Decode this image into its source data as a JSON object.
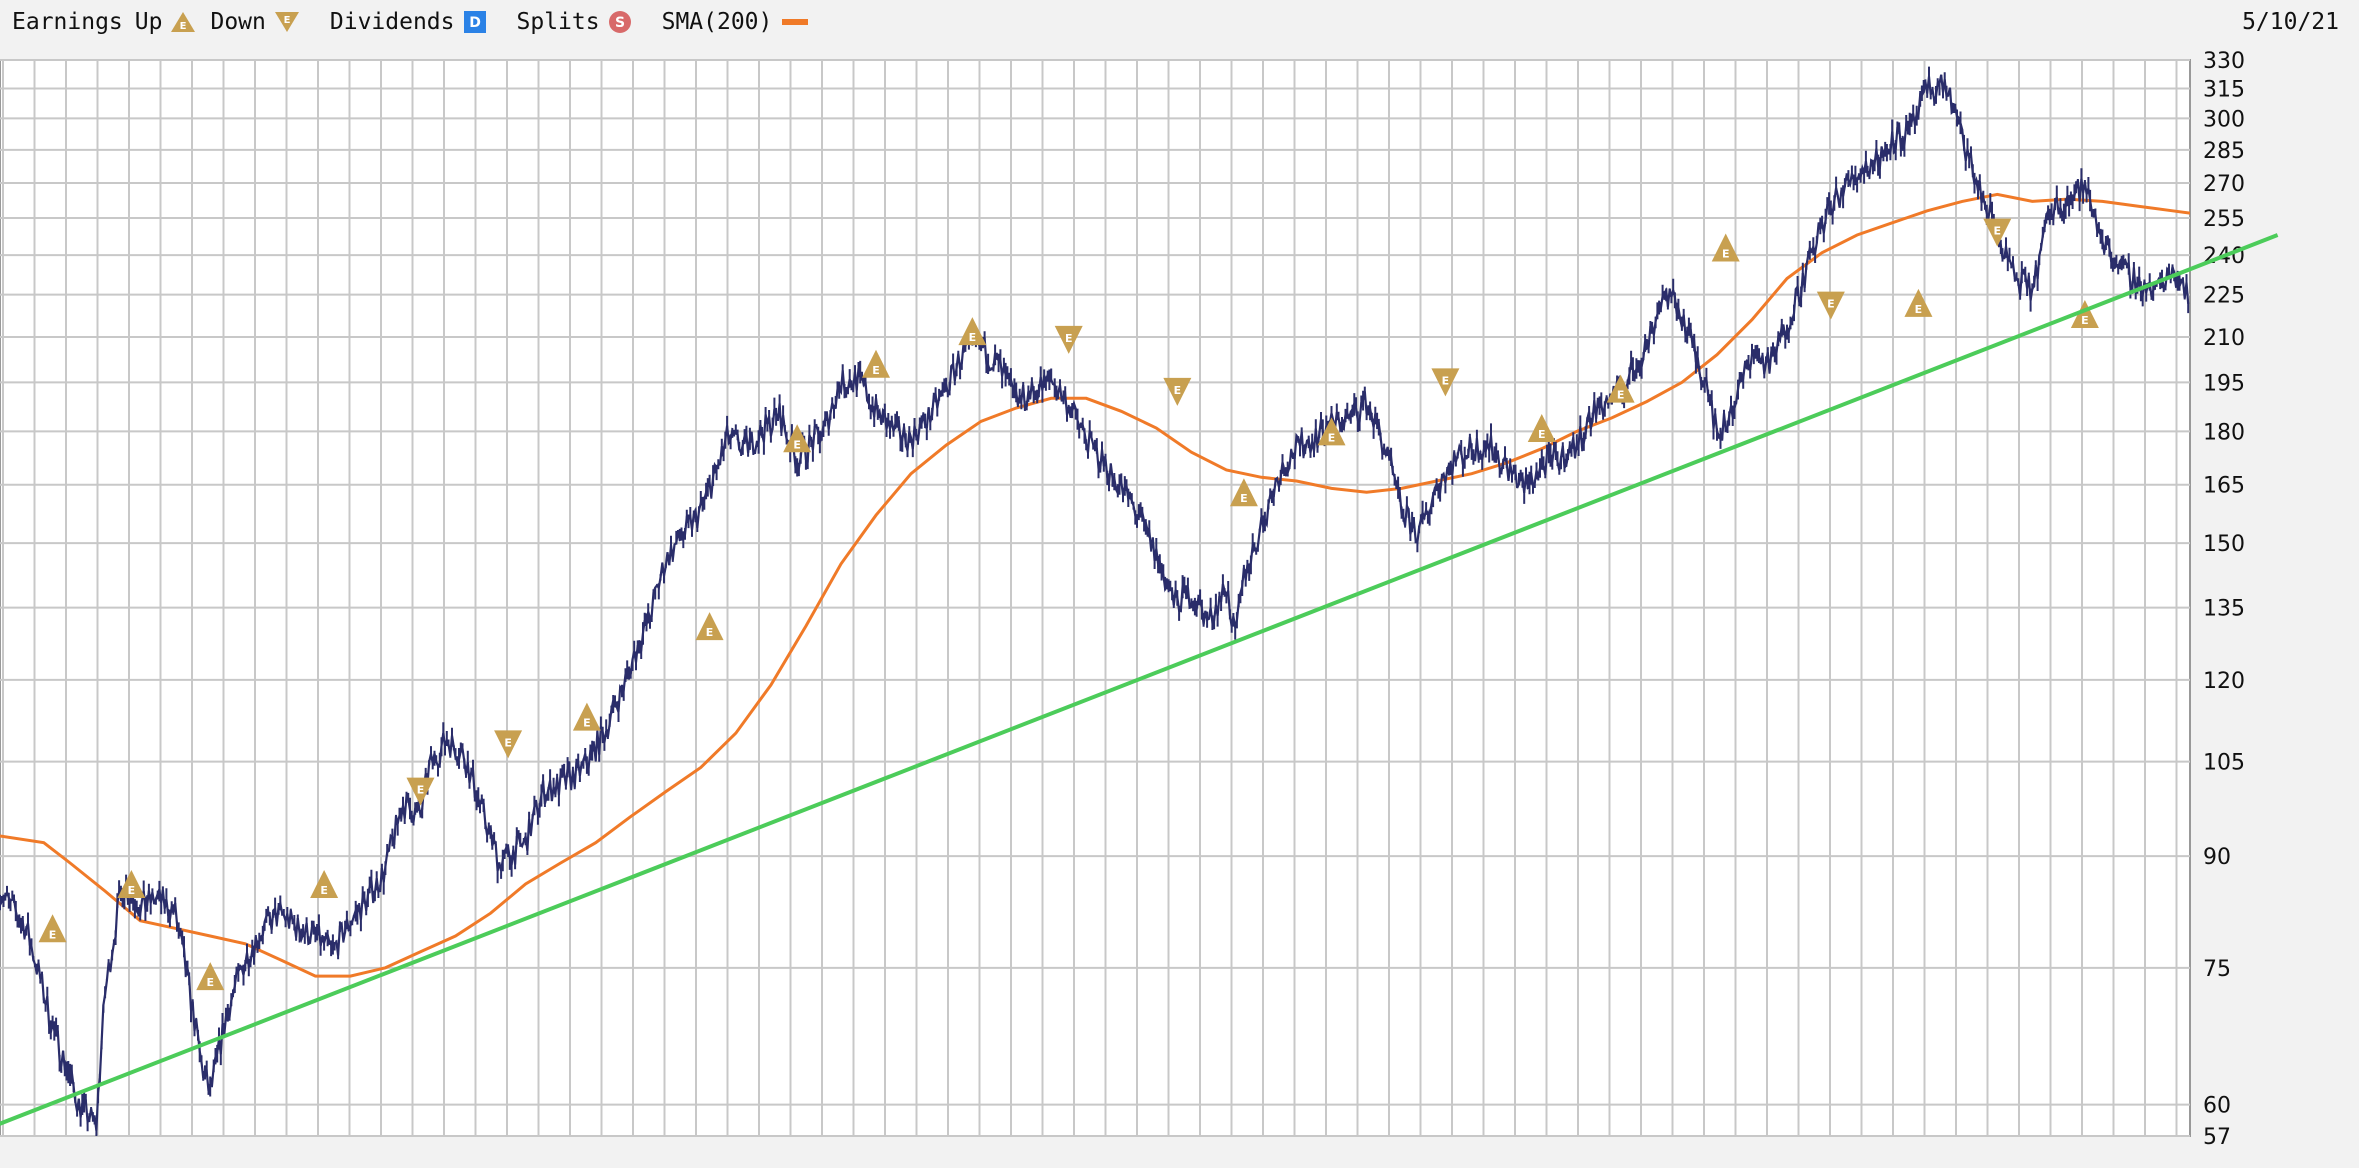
{
  "header": {
    "earnings_label": "Earnings",
    "up_label": "Up",
    "down_label": "Down",
    "dividends_label": "Dividends",
    "dividends_badge": "D",
    "splits_label": "Splits",
    "splits_badge": "S",
    "sma_label": "SMA(200)",
    "date": "5/10/21",
    "marker_letter": "E"
  },
  "colors": {
    "price": "#2a2d6a",
    "sma": "#f07a28",
    "trendline": "#4ccc5a",
    "earnings_marker": "#c8a050",
    "dividend_badge": "#2b82e6",
    "split_badge": "#d86a6a",
    "grid": "#c8c8c8",
    "plot_bg": "#ffffff"
  },
  "chart_data": {
    "type": "line",
    "title": "",
    "xlabel": "",
    "ylabel": "",
    "y_scale": "log",
    "ylim": [
      57,
      330
    ],
    "y_ticks": [
      330,
      315,
      300,
      285,
      270,
      255,
      240,
      225,
      210,
      195,
      180,
      165,
      150,
      135,
      120,
      105,
      90,
      75,
      60,
      57
    ],
    "x_range_trading_days": [
      0,
      1250
    ],
    "series": [
      {
        "name": "",
        "kind": "price",
        "x": [
          0,
          15,
          30,
          45,
          55,
          60,
          70,
          80,
          90,
          100,
          110,
          115,
          120,
          130,
          140,
          150,
          160,
          170,
          180,
          190,
          200,
          210,
          220,
          230,
          240,
          245,
          255,
          265,
          275,
          285,
          300,
          310,
          320,
          330,
          335,
          345,
          355,
          360,
          370,
          380,
          390,
          400,
          410,
          415,
          425,
          435,
          445,
          450,
          455,
          460,
          470,
          480,
          490,
          500,
          510,
          520,
          530,
          540,
          550,
          560,
          570,
          580,
          590,
          600,
          610,
          620,
          625,
          630,
          640,
          650,
          660,
          670,
          680,
          690,
          700,
          705,
          710,
          720,
          730,
          740,
          750,
          760,
          770,
          780,
          790,
          800,
          810,
          820,
          830,
          840,
          850,
          860,
          870,
          880,
          890,
          900,
          910,
          920,
          930,
          940,
          950,
          960,
          970,
          975,
          980,
          990,
          1000,
          1010,
          1020,
          1030,
          1040,
          1050,
          1060,
          1070,
          1080,
          1090,
          1100,
          1110,
          1120,
          1130,
          1140,
          1150,
          1160,
          1170,
          1180,
          1190,
          1200,
          1210,
          1220,
          1230,
          1240,
          1250
        ],
        "values": [
          85,
          80,
          68,
          60,
          58,
          72,
          86,
          83,
          84,
          82,
          70,
          64,
          61,
          70,
          76,
          80,
          82,
          80,
          79,
          77,
          81,
          84,
          88,
          98,
          96,
          104,
          109,
          106,
          97,
          89,
          92,
          100,
          101,
          103,
          105,
          110,
          118,
          123,
          132,
          146,
          152,
          158,
          170,
          178,
          175,
          180,
          185,
          178,
          172,
          175,
          180,
          195,
          196,
          186,
          180,
          178,
          184,
          193,
          205,
          207,
          200,
          189,
          192,
          196,
          188,
          178,
          174,
          171,
          164,
          157,
          147,
          136,
          138,
          132,
          140,
          128,
          142,
          154,
          168,
          175,
          178,
          182,
          184,
          189,
          176,
          158,
          152,
          165,
          172,
          175,
          176,
          170,
          164,
          170,
          172,
          176,
          186,
          190,
          196,
          207,
          226,
          218,
          200,
          195,
          178,
          188,
          205,
          200,
          215,
          232,
          252,
          265,
          275,
          279,
          290,
          292,
          314,
          318,
          290,
          266,
          249,
          231,
          226,
          258,
          263,
          268,
          247,
          235,
          230,
          226,
          235,
          225
        ],
        "note": "approximate daily price path (reconstructed from the plot)"
      },
      {
        "name": "SMA(200)",
        "kind": "sma",
        "x": [
          0,
          25,
          40,
          60,
          80,
          100,
          120,
          140,
          160,
          180,
          200,
          220,
          240,
          260,
          280,
          300,
          320,
          340,
          360,
          380,
          400,
          420,
          440,
          460,
          480,
          500,
          520,
          540,
          560,
          580,
          600,
          620,
          640,
          660,
          680,
          700,
          720,
          740,
          760,
          780,
          800,
          820,
          840,
          860,
          880,
          900,
          920,
          940,
          960,
          980,
          1000,
          1020,
          1040,
          1060,
          1080,
          1100,
          1120,
          1140,
          1160,
          1180,
          1200,
          1220,
          1240,
          1250
        ],
        "values": [
          93,
          92,
          89,
          85,
          81,
          80,
          79,
          78,
          76,
          74,
          74,
          75,
          77,
          79,
          82,
          86,
          89,
          92,
          96,
          100,
          104,
          110,
          119,
          131,
          145,
          157,
          168,
          176,
          183,
          187,
          190,
          190,
          186,
          181,
          174,
          169,
          167,
          166,
          164,
          163,
          164,
          166,
          168,
          171,
          175,
          180,
          184,
          189,
          195,
          204,
          216,
          231,
          241,
          248,
          253,
          258,
          262,
          265,
          262,
          263,
          262,
          260,
          258,
          257
        ],
        "note": "200-day simple moving average"
      },
      {
        "name": "",
        "kind": "trendline",
        "x": [
          -50,
          1300
        ],
        "values": [
          55,
          248
        ],
        "note": "rising support trendline"
      }
    ],
    "earnings_markers": [
      {
        "x": 30,
        "y": 80,
        "direction": "up"
      },
      {
        "x": 75,
        "y": 86,
        "direction": "up"
      },
      {
        "x": 120,
        "y": 74,
        "direction": "up"
      },
      {
        "x": 185,
        "y": 86,
        "direction": "up"
      },
      {
        "x": 240,
        "y": 100,
        "direction": "down"
      },
      {
        "x": 290,
        "y": 108,
        "direction": "down"
      },
      {
        "x": 335,
        "y": 113,
        "direction": "up"
      },
      {
        "x": 405,
        "y": 131,
        "direction": "up"
      },
      {
        "x": 455,
        "y": 178,
        "direction": "up"
      },
      {
        "x": 500,
        "y": 201,
        "direction": "up"
      },
      {
        "x": 555,
        "y": 212,
        "direction": "up"
      },
      {
        "x": 610,
        "y": 209,
        "direction": "down"
      },
      {
        "x": 672,
        "y": 192,
        "direction": "down"
      },
      {
        "x": 710,
        "y": 163,
        "direction": "up"
      },
      {
        "x": 760,
        "y": 180,
        "direction": "up"
      },
      {
        "x": 825,
        "y": 195,
        "direction": "down"
      },
      {
        "x": 880,
        "y": 181,
        "direction": "up"
      },
      {
        "x": 925,
        "y": 193,
        "direction": "up"
      },
      {
        "x": 985,
        "y": 243,
        "direction": "up"
      },
      {
        "x": 1045,
        "y": 221,
        "direction": "down"
      },
      {
        "x": 1095,
        "y": 222,
        "direction": "up"
      },
      {
        "x": 1140,
        "y": 249,
        "direction": "down"
      },
      {
        "x": 1190,
        "y": 218,
        "direction": "up"
      }
    ]
  }
}
